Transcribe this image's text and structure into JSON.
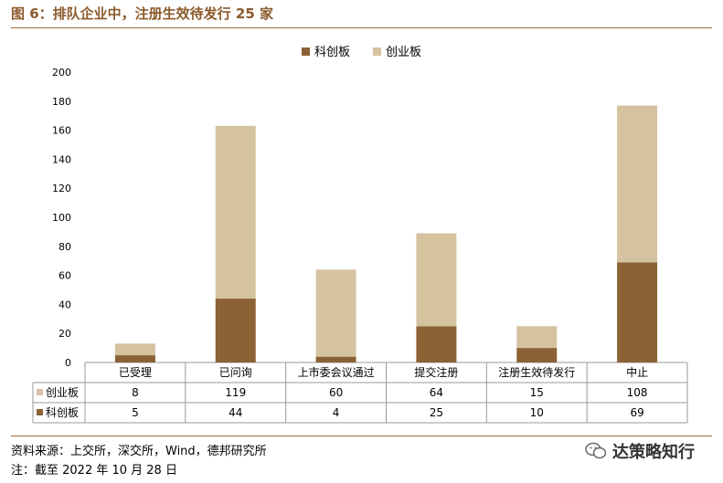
{
  "title": "图 6：排队企业中，注册生效待发行 25 家",
  "source": "资料来源：上交所，深交所，Wind，德邦研究所",
  "note": "注：截至 2022 年 10 月 28 日",
  "watermark": "达策略知行",
  "colors": {
    "star_market": "#8B6235",
    "chinext": "#D5C3A0",
    "accent": "#9C6B3C"
  },
  "chart_data": {
    "type": "bar",
    "stacked": true,
    "categories": [
      "已受理",
      "已问询",
      "上市委会议通过",
      "提交注册",
      "注册生效待发行",
      "中止"
    ],
    "series": [
      {
        "name": "科创板",
        "values": [
          5,
          44,
          4,
          25,
          10,
          69
        ],
        "color": "#8B6235"
      },
      {
        "name": "创业板",
        "values": [
          8,
          119,
          60,
          64,
          15,
          108
        ],
        "color": "#D5C3A0"
      }
    ],
    "ylim": [
      0,
      200
    ],
    "yticks": [
      0,
      20,
      40,
      60,
      80,
      100,
      120,
      140,
      160,
      180,
      200
    ],
    "legend": "top-center",
    "grid": false,
    "data_table": true,
    "table_rows": [
      {
        "name": "创业板",
        "values": [
          "8",
          "119",
          "60",
          "64",
          "15",
          "108"
        ]
      },
      {
        "name": "科创板",
        "values": [
          "5",
          "44",
          "4",
          "25",
          "10",
          "69"
        ]
      }
    ]
  }
}
